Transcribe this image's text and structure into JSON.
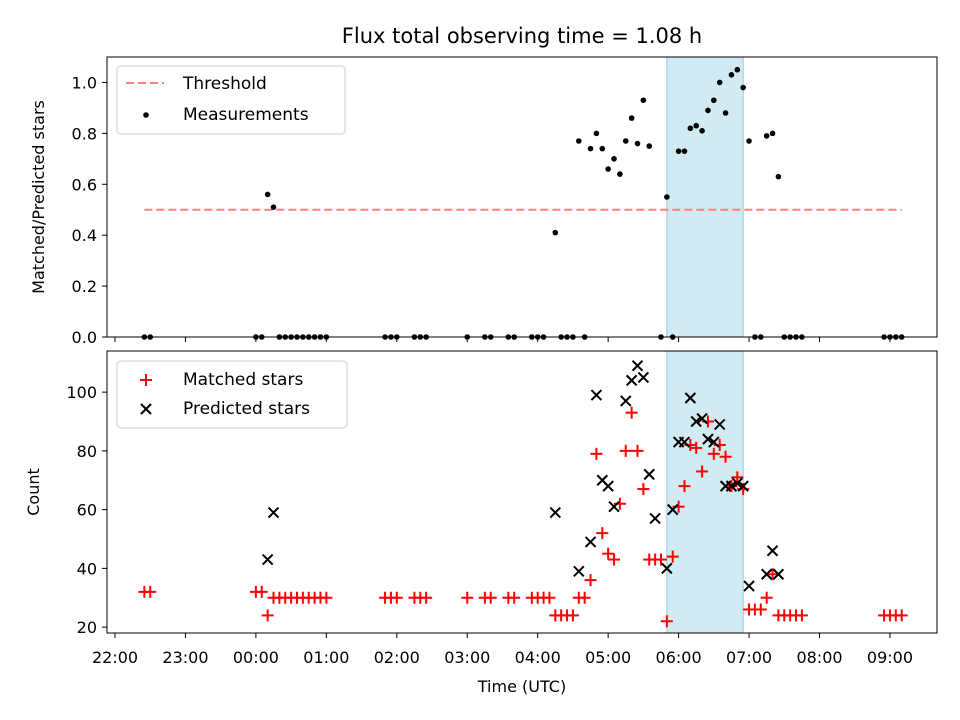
{
  "figure": {
    "title": "Flux total observing time = 1.08 h",
    "xlabel": "Time (UTC)",
    "x_ticks": [
      "22:00",
      "23:00",
      "00:00",
      "01:00",
      "02:00",
      "03:00",
      "04:00",
      "05:00",
      "06:00",
      "07:00",
      "08:00",
      "09:00"
    ],
    "highlight_span": {
      "start": "05:50",
      "end": "06:55",
      "color": "#add8e6"
    }
  },
  "chart_data": [
    {
      "type": "scatter",
      "ylabel": "Matched/Predicted stars",
      "ylim": [
        0,
        1.1
      ],
      "y_ticks": [
        "0.0",
        "0.2",
        "0.4",
        "0.6",
        "0.8",
        "1.0"
      ],
      "legend": {
        "placement": "top-left",
        "entries": [
          "Threshold",
          "Measurements"
        ]
      },
      "threshold": {
        "name": "Threshold",
        "value": 0.5,
        "x_start": "22:25",
        "x_end": "09:10",
        "color": "#ff7f7f"
      },
      "series": [
        {
          "name": "Measurements",
          "color": "#000000",
          "points": [
            [
              "22:25",
              0
            ],
            [
              "22:30",
              0
            ],
            [
              "00:00",
              0
            ],
            [
              "00:05",
              0
            ],
            [
              "00:10",
              0.56
            ],
            [
              "00:15",
              0.51
            ],
            [
              "00:20",
              0
            ],
            [
              "00:25",
              0
            ],
            [
              "00:30",
              0
            ],
            [
              "00:35",
              0
            ],
            [
              "00:40",
              0
            ],
            [
              "00:45",
              0
            ],
            [
              "00:50",
              0
            ],
            [
              "00:55",
              0
            ],
            [
              "01:00",
              0
            ],
            [
              "01:50",
              0
            ],
            [
              "01:55",
              0
            ],
            [
              "02:00",
              0
            ],
            [
              "02:15",
              0
            ],
            [
              "02:20",
              0
            ],
            [
              "02:25",
              0
            ],
            [
              "03:00",
              0
            ],
            [
              "03:15",
              0
            ],
            [
              "03:20",
              0
            ],
            [
              "03:35",
              0
            ],
            [
              "03:40",
              0
            ],
            [
              "03:55",
              0
            ],
            [
              "04:00",
              0
            ],
            [
              "04:05",
              0
            ],
            [
              "04:15",
              0.41
            ],
            [
              "04:20",
              0
            ],
            [
              "04:25",
              0
            ],
            [
              "04:30",
              0
            ],
            [
              "04:35",
              0.77
            ],
            [
              "04:40",
              0
            ],
            [
              "04:45",
              0.74
            ],
            [
              "04:50",
              0.8
            ],
            [
              "04:55",
              0.74
            ],
            [
              "05:00",
              0.66
            ],
            [
              "05:05",
              0.7
            ],
            [
              "05:10",
              0.64
            ],
            [
              "05:15",
              0.77
            ],
            [
              "05:20",
              0.86
            ],
            [
              "05:25",
              0.76
            ],
            [
              "05:30",
              0.93
            ],
            [
              "05:35",
              0.75
            ],
            [
              "05:45",
              0
            ],
            [
              "05:50",
              0.55
            ],
            [
              "05:55",
              0
            ],
            [
              "06:00",
              0.73
            ],
            [
              "06:05",
              0.73
            ],
            [
              "06:10",
              0.82
            ],
            [
              "06:15",
              0.83
            ],
            [
              "06:20",
              0.81
            ],
            [
              "06:25",
              0.89
            ],
            [
              "06:30",
              0.93
            ],
            [
              "06:35",
              1.0
            ],
            [
              "06:40",
              0.88
            ],
            [
              "06:45",
              1.03
            ],
            [
              "06:50",
              1.05
            ],
            [
              "06:55",
              0.98
            ],
            [
              "07:00",
              0.77
            ],
            [
              "07:05",
              0
            ],
            [
              "07:10",
              0
            ],
            [
              "07:15",
              0.79
            ],
            [
              "07:20",
              0.8
            ],
            [
              "07:25",
              0.63
            ],
            [
              "07:30",
              0
            ],
            [
              "07:35",
              0
            ],
            [
              "07:40",
              0
            ],
            [
              "07:45",
              0
            ],
            [
              "08:55",
              0
            ],
            [
              "09:00",
              0
            ],
            [
              "09:05",
              0
            ],
            [
              "09:10",
              0
            ]
          ]
        }
      ]
    },
    {
      "type": "scatter",
      "ylabel": "Count",
      "ylim": [
        18,
        114
      ],
      "y_ticks": [
        "20",
        "40",
        "60",
        "80",
        "100"
      ],
      "legend": {
        "placement": "top-left",
        "entries": [
          "Matched stars",
          "Predicted stars"
        ]
      },
      "series": [
        {
          "name": "Matched stars",
          "marker": "+",
          "color": "#ff0000",
          "points": [
            [
              "22:25",
              32
            ],
            [
              "22:30",
              32
            ],
            [
              "00:00",
              32
            ],
            [
              "00:05",
              32
            ],
            [
              "00:10",
              24
            ],
            [
              "00:15",
              30
            ],
            [
              "00:20",
              30
            ],
            [
              "00:25",
              30
            ],
            [
              "00:30",
              30
            ],
            [
              "00:35",
              30
            ],
            [
              "00:40",
              30
            ],
            [
              "00:45",
              30
            ],
            [
              "00:50",
              30
            ],
            [
              "00:55",
              30
            ],
            [
              "01:00",
              30
            ],
            [
              "01:50",
              30
            ],
            [
              "01:55",
              30
            ],
            [
              "02:00",
              30
            ],
            [
              "02:15",
              30
            ],
            [
              "02:20",
              30
            ],
            [
              "02:25",
              30
            ],
            [
              "03:00",
              30
            ],
            [
              "03:15",
              30
            ],
            [
              "03:20",
              30
            ],
            [
              "03:35",
              30
            ],
            [
              "03:40",
              30
            ],
            [
              "03:55",
              30
            ],
            [
              "04:00",
              30
            ],
            [
              "04:05",
              30
            ],
            [
              "04:10",
              30
            ],
            [
              "04:15",
              24
            ],
            [
              "04:20",
              24
            ],
            [
              "04:25",
              24
            ],
            [
              "04:30",
              24
            ],
            [
              "04:35",
              30
            ],
            [
              "04:40",
              30
            ],
            [
              "04:45",
              36
            ],
            [
              "04:50",
              79
            ],
            [
              "04:55",
              52
            ],
            [
              "05:00",
              45
            ],
            [
              "05:05",
              43
            ],
            [
              "05:10",
              62
            ],
            [
              "05:15",
              80
            ],
            [
              "05:20",
              93
            ],
            [
              "05:25",
              80
            ],
            [
              "05:30",
              67
            ],
            [
              "05:35",
              43
            ],
            [
              "05:40",
              43
            ],
            [
              "05:45",
              43
            ],
            [
              "05:50",
              22
            ],
            [
              "05:55",
              44
            ],
            [
              "06:00",
              61
            ],
            [
              "06:05",
              68
            ],
            [
              "06:10",
              82
            ],
            [
              "06:15",
              81
            ],
            [
              "06:20",
              73
            ],
            [
              "06:25",
              90
            ],
            [
              "06:30",
              79
            ],
            [
              "06:35",
              82
            ],
            [
              "06:40",
              78
            ],
            [
              "06:45",
              68
            ],
            [
              "06:50",
              71
            ],
            [
              "06:55",
              67
            ],
            [
              "07:00",
              26
            ],
            [
              "07:05",
              26
            ],
            [
              "07:10",
              26
            ],
            [
              "07:15",
              30
            ],
            [
              "07:20",
              38
            ],
            [
              "07:25",
              24
            ],
            [
              "07:30",
              24
            ],
            [
              "07:35",
              24
            ],
            [
              "07:40",
              24
            ],
            [
              "07:45",
              24
            ],
            [
              "08:55",
              24
            ],
            [
              "09:00",
              24
            ],
            [
              "09:05",
              24
            ],
            [
              "09:10",
              24
            ]
          ]
        },
        {
          "name": "Predicted stars",
          "marker": "x",
          "color": "#000000",
          "points": [
            [
              "00:10",
              43
            ],
            [
              "00:15",
              59
            ],
            [
              "04:15",
              59
            ],
            [
              "04:35",
              39
            ],
            [
              "04:45",
              49
            ],
            [
              "04:50",
              99
            ],
            [
              "04:55",
              70
            ],
            [
              "05:00",
              68
            ],
            [
              "05:05",
              61
            ],
            [
              "05:15",
              97
            ],
            [
              "05:20",
              104
            ],
            [
              "05:25",
              109
            ],
            [
              "05:30",
              105
            ],
            [
              "05:35",
              72
            ],
            [
              "05:40",
              57
            ],
            [
              "05:50",
              40
            ],
            [
              "05:55",
              60
            ],
            [
              "06:00",
              83
            ],
            [
              "06:05",
              83
            ],
            [
              "06:10",
              98
            ],
            [
              "06:15",
              90
            ],
            [
              "06:20",
              91
            ],
            [
              "06:25",
              84
            ],
            [
              "06:30",
              83
            ],
            [
              "06:35",
              89
            ],
            [
              "06:40",
              68
            ],
            [
              "06:45",
              68
            ],
            [
              "06:50",
              69
            ],
            [
              "06:55",
              68
            ],
            [
              "07:00",
              34
            ],
            [
              "07:15",
              38
            ],
            [
              "07:20",
              46
            ],
            [
              "07:25",
              38
            ]
          ]
        }
      ]
    }
  ]
}
